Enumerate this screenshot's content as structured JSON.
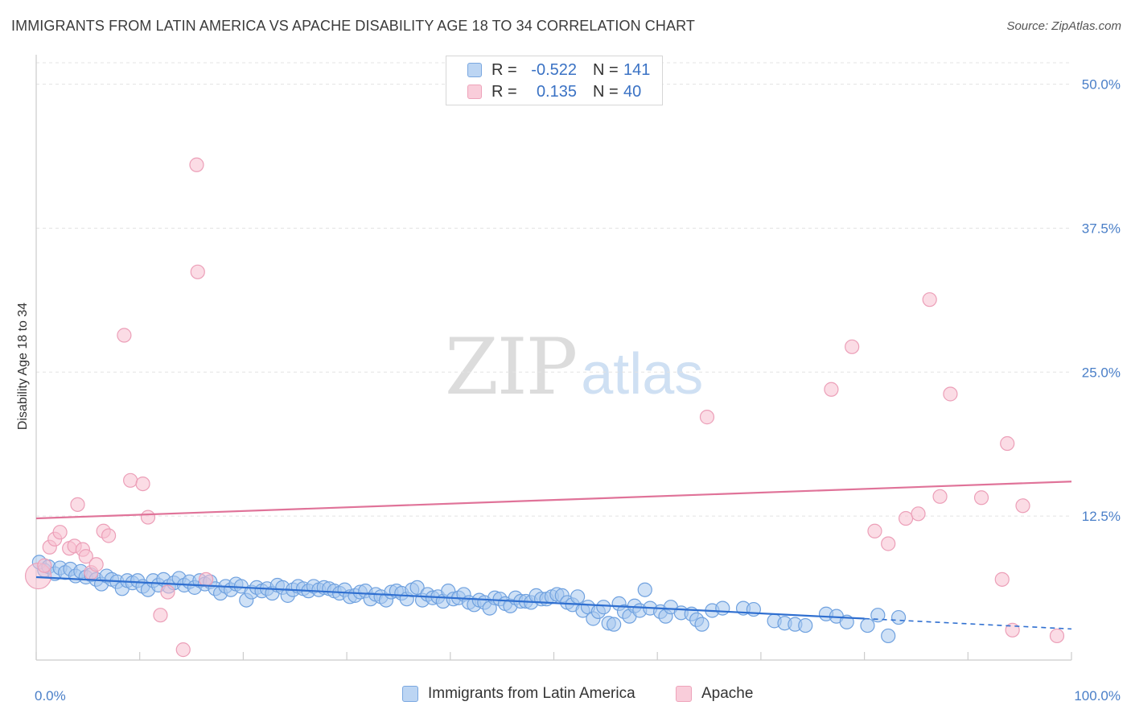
{
  "header": {
    "title": "IMMIGRANTS FROM LATIN AMERICA VS APACHE DISABILITY AGE 18 TO 34 CORRELATION CHART",
    "source": "Source: ZipAtlas.com"
  },
  "watermark": {
    "zip": "ZIP",
    "atlas": "atlas"
  },
  "legend": {
    "r_label": "R =",
    "n_label": "N =",
    "rows": [
      {
        "r": "-0.522",
        "n": "141",
        "color": "#a7c8ef"
      },
      {
        "r": "0.135",
        "n": "40",
        "color": "#f7bfd0"
      }
    ]
  },
  "chart_data": {
    "type": "scatter",
    "title": "IMMIGRANTS FROM LATIN AMERICA VS APACHE DISABILITY AGE 18 TO 34 CORRELATION CHART",
    "xlabel": "",
    "ylabel": "Disability Age 18 to 34",
    "xlim": [
      0,
      100
    ],
    "ylim": [
      0,
      52
    ],
    "x_tick_labels": [
      "0.0%",
      "100.0%"
    ],
    "y_ticks": [
      12.5,
      25.0,
      37.5,
      50.0
    ],
    "y_tick_labels": [
      "12.5%",
      "25.0%",
      "37.5%",
      "50.0%"
    ],
    "grid": true,
    "legend_position": "top-center",
    "series": [
      {
        "name": "Immigrants from Latin America",
        "color": "#7fb0e8",
        "line_color": "#2f6fd0",
        "trend": {
          "x": [
            0,
            80
          ],
          "y": [
            7.2,
            3.6
          ]
        },
        "trend_dashed": {
          "x": [
            80,
            100
          ],
          "y": [
            3.6,
            2.7
          ]
        },
        "points": [
          [
            0.3,
            8.5
          ],
          [
            0.8,
            7.8
          ],
          [
            1.2,
            8.1
          ],
          [
            1.8,
            7.5
          ],
          [
            2.3,
            8.0
          ],
          [
            2.8,
            7.6
          ],
          [
            3.3,
            7.9
          ],
          [
            3.8,
            7.3
          ],
          [
            4.3,
            7.7
          ],
          [
            4.8,
            7.2
          ],
          [
            5.3,
            7.4
          ],
          [
            5.8,
            7.0
          ],
          [
            6.3,
            6.6
          ],
          [
            6.8,
            7.3
          ],
          [
            7.3,
            7.0
          ],
          [
            7.8,
            6.8
          ],
          [
            8.3,
            6.2
          ],
          [
            8.8,
            6.9
          ],
          [
            9.3,
            6.7
          ],
          [
            9.8,
            6.9
          ],
          [
            10.3,
            6.4
          ],
          [
            10.8,
            6.1
          ],
          [
            11.3,
            6.9
          ],
          [
            11.8,
            6.5
          ],
          [
            12.3,
            7.0
          ],
          [
            12.8,
            6.4
          ],
          [
            13.3,
            6.7
          ],
          [
            13.8,
            7.1
          ],
          [
            14.3,
            6.5
          ],
          [
            14.8,
            6.8
          ],
          [
            15.3,
            6.3
          ],
          [
            15.8,
            6.9
          ],
          [
            16.3,
            6.6
          ],
          [
            16.8,
            6.8
          ],
          [
            17.3,
            6.2
          ],
          [
            17.8,
            5.8
          ],
          [
            18.3,
            6.4
          ],
          [
            18.8,
            6.1
          ],
          [
            19.3,
            6.6
          ],
          [
            19.8,
            6.4
          ],
          [
            20.3,
            5.2
          ],
          [
            20.8,
            5.9
          ],
          [
            21.3,
            6.3
          ],
          [
            21.8,
            6.0
          ],
          [
            22.3,
            6.2
          ],
          [
            22.8,
            5.8
          ],
          [
            23.3,
            6.5
          ],
          [
            23.8,
            6.3
          ],
          [
            24.3,
            5.6
          ],
          [
            24.8,
            6.1
          ],
          [
            25.3,
            6.4
          ],
          [
            25.8,
            6.2
          ],
          [
            26.3,
            6.0
          ],
          [
            26.8,
            6.4
          ],
          [
            27.3,
            6.1
          ],
          [
            27.8,
            6.3
          ],
          [
            28.3,
            6.2
          ],
          [
            28.8,
            6.0
          ],
          [
            29.3,
            5.8
          ],
          [
            29.8,
            6.1
          ],
          [
            30.3,
            5.5
          ],
          [
            30.8,
            5.6
          ],
          [
            31.3,
            5.9
          ],
          [
            31.8,
            6.0
          ],
          [
            32.3,
            5.3
          ],
          [
            32.8,
            5.7
          ],
          [
            33.3,
            5.5
          ],
          [
            33.8,
            5.2
          ],
          [
            34.3,
            5.9
          ],
          [
            34.8,
            6.0
          ],
          [
            35.3,
            5.8
          ],
          [
            35.8,
            5.3
          ],
          [
            36.3,
            6.1
          ],
          [
            36.8,
            6.3
          ],
          [
            37.3,
            5.2
          ],
          [
            37.8,
            5.7
          ],
          [
            38.3,
            5.4
          ],
          [
            38.8,
            5.5
          ],
          [
            39.3,
            5.1
          ],
          [
            39.8,
            6.0
          ],
          [
            40.3,
            5.3
          ],
          [
            40.8,
            5.4
          ],
          [
            41.3,
            5.7
          ],
          [
            41.8,
            5.0
          ],
          [
            42.3,
            4.8
          ],
          [
            42.8,
            5.2
          ],
          [
            43.3,
            5.0
          ],
          [
            43.8,
            4.5
          ],
          [
            44.3,
            5.4
          ],
          [
            44.8,
            5.3
          ],
          [
            45.3,
            4.9
          ],
          [
            45.8,
            4.7
          ],
          [
            46.3,
            5.4
          ],
          [
            46.8,
            5.1
          ],
          [
            47.3,
            5.1
          ],
          [
            47.8,
            5.0
          ],
          [
            48.3,
            5.6
          ],
          [
            48.8,
            5.3
          ],
          [
            49.3,
            5.3
          ],
          [
            49.8,
            5.5
          ],
          [
            50.3,
            5.7
          ],
          [
            50.8,
            5.6
          ],
          [
            51.3,
            5.0
          ],
          [
            51.8,
            4.8
          ],
          [
            52.3,
            5.5
          ],
          [
            52.8,
            4.3
          ],
          [
            53.3,
            4.6
          ],
          [
            53.8,
            3.6
          ],
          [
            54.3,
            4.2
          ],
          [
            54.8,
            4.6
          ],
          [
            55.3,
            3.2
          ],
          [
            55.8,
            3.1
          ],
          [
            56.3,
            4.9
          ],
          [
            56.8,
            4.2
          ],
          [
            57.3,
            3.8
          ],
          [
            57.8,
            4.7
          ],
          [
            58.3,
            4.3
          ],
          [
            58.8,
            6.1
          ],
          [
            59.3,
            4.5
          ],
          [
            60.3,
            4.2
          ],
          [
            60.8,
            3.8
          ],
          [
            61.3,
            4.6
          ],
          [
            62.3,
            4.1
          ],
          [
            63.3,
            4.0
          ],
          [
            63.8,
            3.5
          ],
          [
            64.3,
            3.1
          ],
          [
            65.3,
            4.3
          ],
          [
            66.3,
            4.5
          ],
          [
            68.3,
            4.5
          ],
          [
            69.3,
            4.4
          ],
          [
            71.3,
            3.4
          ],
          [
            72.3,
            3.2
          ],
          [
            73.3,
            3.1
          ],
          [
            74.3,
            3.0
          ],
          [
            76.3,
            4.0
          ],
          [
            77.3,
            3.8
          ],
          [
            78.3,
            3.3
          ],
          [
            80.3,
            3.0
          ],
          [
            81.3,
            3.9
          ],
          [
            82.3,
            2.1
          ],
          [
            83.3,
            3.7
          ]
        ]
      },
      {
        "name": "Apache",
        "color": "#f4a6bd",
        "line_color": "#e07399",
        "trend": {
          "x": [
            0,
            100
          ],
          "y": [
            12.3,
            15.5
          ]
        },
        "points": [
          [
            0.2,
            7.3
          ],
          [
            0.8,
            8.2
          ],
          [
            1.3,
            9.8
          ],
          [
            1.8,
            10.5
          ],
          [
            2.3,
            11.1
          ],
          [
            3.2,
            9.7
          ],
          [
            3.7,
            9.9
          ],
          [
            4.0,
            13.5
          ],
          [
            4.5,
            9.6
          ],
          [
            4.8,
            9.0
          ],
          [
            5.3,
            7.6
          ],
          [
            5.8,
            8.3
          ],
          [
            6.5,
            11.2
          ],
          [
            7.0,
            10.8
          ],
          [
            8.5,
            28.2
          ],
          [
            9.1,
            15.6
          ],
          [
            10.3,
            15.3
          ],
          [
            10.8,
            12.4
          ],
          [
            12.0,
            3.9
          ],
          [
            12.7,
            5.9
          ],
          [
            14.2,
            0.9
          ],
          [
            15.5,
            43.0
          ],
          [
            15.6,
            33.7
          ],
          [
            16.4,
            7.0
          ],
          [
            64.8,
            21.1
          ],
          [
            76.8,
            23.5
          ],
          [
            78.8,
            27.2
          ],
          [
            81.0,
            11.2
          ],
          [
            82.3,
            10.1
          ],
          [
            84.0,
            12.3
          ],
          [
            85.2,
            12.7
          ],
          [
            86.3,
            31.3
          ],
          [
            87.3,
            14.2
          ],
          [
            88.3,
            23.1
          ],
          [
            91.3,
            14.1
          ],
          [
            93.3,
            7.0
          ],
          [
            93.8,
            18.8
          ],
          [
            94.3,
            2.6
          ],
          [
            95.3,
            13.4
          ],
          [
            98.6,
            2.1
          ]
        ]
      }
    ]
  },
  "bottom_legend": [
    {
      "label": "Immigrants from Latin America"
    },
    {
      "label": "Apache"
    }
  ]
}
